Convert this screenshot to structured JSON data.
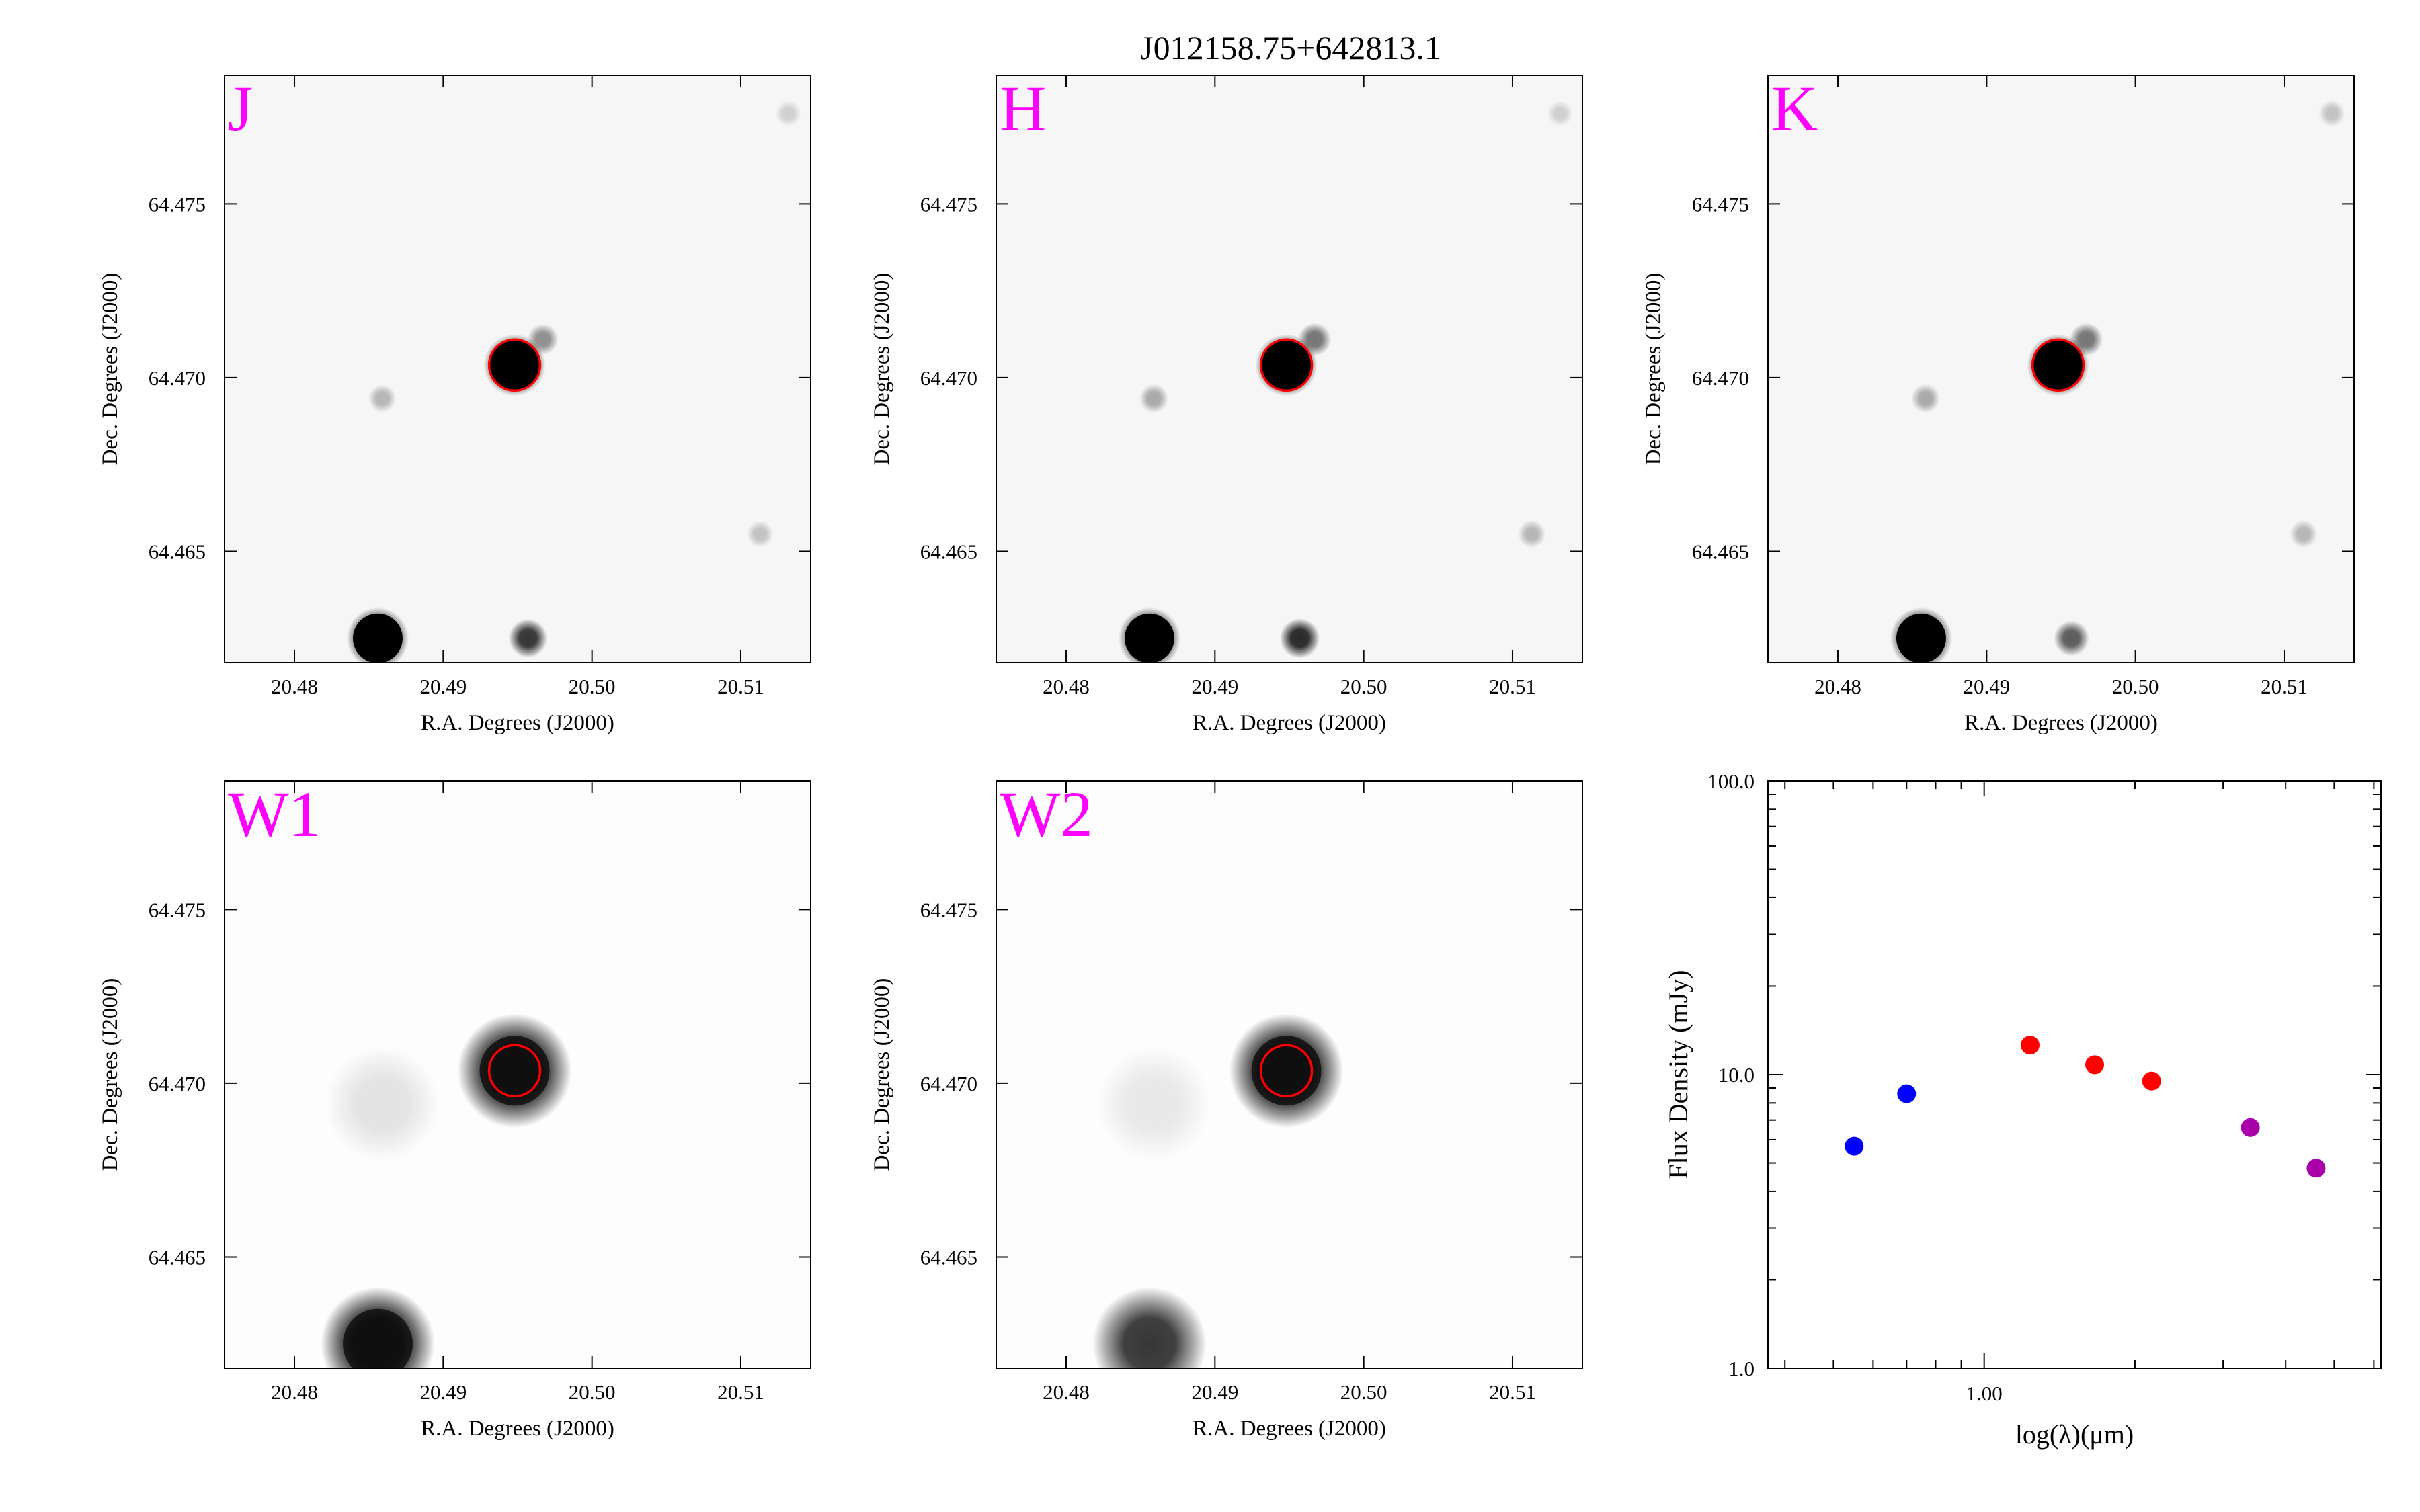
{
  "figure": {
    "title": "J012158.75+642813.1"
  },
  "colors": {
    "band_label": "#ff00ff",
    "aperture": "#ff0000",
    "frame": "#000000",
    "sed_optical": "#0000ff",
    "sed_nir": "#ff0000",
    "sed_mir": "#aa00aa"
  },
  "chart_data": [
    {
      "type": "heatmap",
      "band_label": "J",
      "xlabel": "R.A. Degrees (J2000)",
      "ylabel": "Dec. Degrees (J2000)",
      "xlim": [
        20.4753,
        20.5147
      ],
      "ylim": [
        64.4618,
        64.4787
      ],
      "xticks": [
        "20.48",
        "20.49",
        "20.50",
        "20.51"
      ],
      "yticks": [
        "64.465",
        "64.470",
        "64.475"
      ],
      "colormap": "gray_r",
      "aperture": {
        "ra": 20.4948,
        "dec": 64.47036
      },
      "sources": [
        {
          "ra": 20.4948,
          "dec": 64.47036,
          "intensity": 1.0
        },
        {
          "ra": 20.4967,
          "dec": 64.4711,
          "intensity": 0.4
        },
        {
          "ra": 20.4859,
          "dec": 64.4694,
          "intensity": 0.25
        },
        {
          "ra": 20.4856,
          "dec": 64.4625,
          "intensity": 1.0
        },
        {
          "ra": 20.4957,
          "dec": 64.4625,
          "intensity": 0.75
        },
        {
          "ra": 20.5113,
          "dec": 64.4655,
          "intensity": 0.2
        },
        {
          "ra": 20.5132,
          "dec": 64.4776,
          "intensity": 0.15
        }
      ]
    },
    {
      "type": "heatmap",
      "band_label": "H",
      "xlabel": "R.A. Degrees (J2000)",
      "ylabel": "Dec. Degrees (J2000)",
      "xlim": [
        20.4753,
        20.5147
      ],
      "ylim": [
        64.4618,
        64.4787
      ],
      "xticks": [
        "20.48",
        "20.49",
        "20.50",
        "20.51"
      ],
      "yticks": [
        "64.465",
        "64.470",
        "64.475"
      ],
      "colormap": "gray_r",
      "aperture": {
        "ra": 20.4948,
        "dec": 64.47036
      },
      "sources": [
        {
          "ra": 20.4948,
          "dec": 64.47036,
          "intensity": 1.0
        },
        {
          "ra": 20.4967,
          "dec": 64.4711,
          "intensity": 0.5
        },
        {
          "ra": 20.4859,
          "dec": 64.4694,
          "intensity": 0.3
        },
        {
          "ra": 20.4856,
          "dec": 64.4625,
          "intensity": 1.0
        },
        {
          "ra": 20.4957,
          "dec": 64.4625,
          "intensity": 0.8
        },
        {
          "ra": 20.5113,
          "dec": 64.4655,
          "intensity": 0.25
        },
        {
          "ra": 20.5132,
          "dec": 64.4776,
          "intensity": 0.15
        }
      ]
    },
    {
      "type": "heatmap",
      "band_label": "K",
      "xlabel": "R.A. Degrees (J2000)",
      "ylabel": "Dec. Degrees (J2000)",
      "xlim": [
        20.4753,
        20.5147
      ],
      "ylim": [
        64.4618,
        64.4787
      ],
      "xticks": [
        "20.48",
        "20.49",
        "20.50",
        "20.51"
      ],
      "yticks": [
        "64.465",
        "64.470",
        "64.475"
      ],
      "colormap": "gray_r",
      "aperture": {
        "ra": 20.4948,
        "dec": 64.47036
      },
      "sources": [
        {
          "ra": 20.4948,
          "dec": 64.47036,
          "intensity": 1.0
        },
        {
          "ra": 20.4967,
          "dec": 64.4711,
          "intensity": 0.5
        },
        {
          "ra": 20.4859,
          "dec": 64.4694,
          "intensity": 0.3
        },
        {
          "ra": 20.4856,
          "dec": 64.4625,
          "intensity": 1.0
        },
        {
          "ra": 20.4957,
          "dec": 64.4625,
          "intensity": 0.6
        },
        {
          "ra": 20.5113,
          "dec": 64.4655,
          "intensity": 0.25
        },
        {
          "ra": 20.5132,
          "dec": 64.4776,
          "intensity": 0.2
        }
      ]
    },
    {
      "type": "heatmap",
      "band_label": "W1",
      "xlabel": "R.A. Degrees (J2000)",
      "ylabel": "Dec. Degrees (J2000)",
      "xlim": [
        20.4753,
        20.5147
      ],
      "ylim": [
        64.4618,
        64.4787
      ],
      "xticks": [
        "20.48",
        "20.49",
        "20.50",
        "20.51"
      ],
      "yticks": [
        "64.465",
        "64.470",
        "64.475"
      ],
      "colormap": "gray_r",
      "aperture": {
        "ra": 20.4948,
        "dec": 64.47036
      },
      "sources": [
        {
          "ra": 20.4948,
          "dec": 64.47036,
          "intensity": 1.0
        },
        {
          "ra": 20.4856,
          "dec": 64.4625,
          "intensity": 1.0
        },
        {
          "ra": 20.4859,
          "dec": 64.4694,
          "intensity": 0.1
        }
      ]
    },
    {
      "type": "heatmap",
      "band_label": "W2",
      "xlabel": "R.A. Degrees (J2000)",
      "ylabel": "Dec. Degrees (J2000)",
      "xlim": [
        20.4753,
        20.5147
      ],
      "ylim": [
        64.4618,
        64.4787
      ],
      "xticks": [
        "20.48",
        "20.49",
        "20.50",
        "20.51"
      ],
      "yticks": [
        "64.465",
        "64.470",
        "64.475"
      ],
      "colormap": "gray_r",
      "aperture": {
        "ra": 20.4948,
        "dec": 64.47036
      },
      "sources": [
        {
          "ra": 20.4948,
          "dec": 64.47036,
          "intensity": 1.0
        },
        {
          "ra": 20.4856,
          "dec": 64.4625,
          "intensity": 0.75
        },
        {
          "ra": 20.4859,
          "dec": 64.4694,
          "intensity": 0.08
        }
      ]
    },
    {
      "type": "scatter",
      "xlabel": "log(λ)(μm)",
      "ylabel": "Flux Density (mJy)",
      "xscale": "log",
      "yscale": "log",
      "xlim": [
        0.37,
        6.2
      ],
      "ylim": [
        1.0,
        100.0
      ],
      "xticks": [
        "1.00"
      ],
      "yticks": [
        "1.0",
        "10.0",
        "100.0"
      ],
      "series": [
        {
          "color": "#0000ff",
          "x": [
            0.55,
            0.7
          ],
          "y": [
            5.7,
            8.6
          ]
        },
        {
          "color": "#ff0000",
          "x": [
            1.235,
            1.662,
            2.159
          ],
          "y": [
            12.6,
            10.8,
            9.5
          ]
        },
        {
          "color": "#aa00aa",
          "x": [
            3.4,
            4.6
          ],
          "y": [
            6.6,
            4.8
          ]
        }
      ]
    }
  ]
}
